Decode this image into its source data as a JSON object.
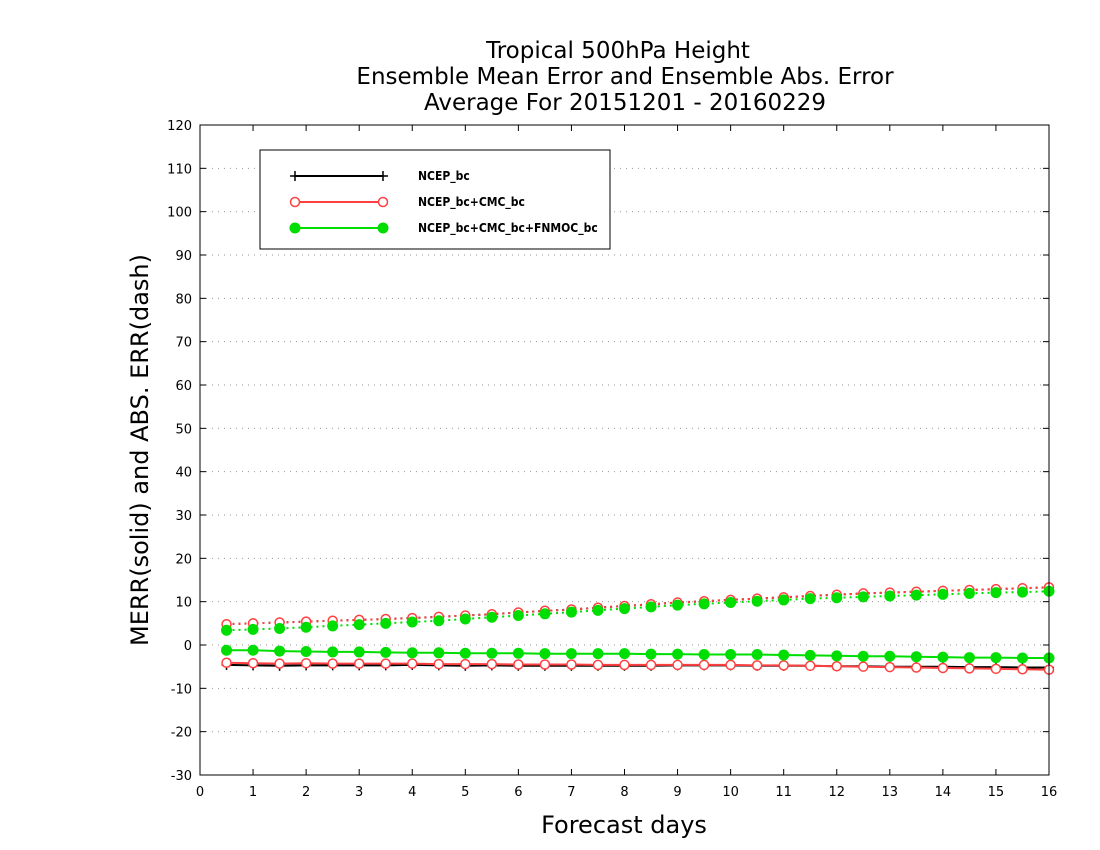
{
  "chart_data": {
    "type": "line",
    "title_lines": [
      "Tropical 500hPa Height",
      "Ensemble Mean Error and Ensemble Abs. Error",
      "Average For 20151201 - 20160229"
    ],
    "xlabel": "Forecast days",
    "ylabel": "MERR(solid) and ABS. ERR(dash)",
    "xlim": [
      0,
      16
    ],
    "ylim": [
      -30,
      120
    ],
    "xticks": [
      "0",
      "1",
      "2",
      "3",
      "4",
      "5",
      "6",
      "7",
      "8",
      "9",
      "10",
      "11",
      "12",
      "13",
      "14",
      "15",
      "16"
    ],
    "yticks": [
      "120",
      "110",
      "100",
      "90",
      "80",
      "70",
      "60",
      "50",
      "40",
      "30",
      "20",
      "10",
      "0",
      "-10",
      "-20",
      "-30"
    ],
    "grid": true,
    "legend_position": "top-left",
    "x": [
      0.5,
      1,
      1.5,
      2,
      2.5,
      3,
      3.5,
      4,
      4.5,
      5,
      5.5,
      6,
      6.5,
      7,
      7.5,
      8,
      8.5,
      9,
      9.5,
      10,
      10.5,
      11,
      11.5,
      12,
      12.5,
      13,
      13.5,
      14,
      14.5,
      15,
      15.5,
      16
    ],
    "series": [
      {
        "name": "NCEP_bc",
        "color": "#000000",
        "marker": "plus",
        "merr": [
          -4.6,
          -4.7,
          -4.8,
          -4.7,
          -4.7,
          -4.7,
          -4.7,
          -4.6,
          -4.7,
          -4.8,
          -4.7,
          -4.8,
          -4.8,
          -4.8,
          -4.8,
          -4.8,
          -4.8,
          -4.7,
          -4.7,
          -4.7,
          -4.8,
          -4.8,
          -4.8,
          -4.9,
          -4.9,
          -5.0,
          -5.0,
          -5.0,
          -5.1,
          -5.1,
          -5.2,
          -5.2
        ],
        "abs_err": [
          4.8,
          5.0,
          5.2,
          5.4,
          5.6,
          5.8,
          6.0,
          6.2,
          6.5,
          6.8,
          7.1,
          7.5,
          7.9,
          8.2,
          8.6,
          9.0,
          9.4,
          9.8,
          10.1,
          10.4,
          10.7,
          11.0,
          11.3,
          11.6,
          11.9,
          12.1,
          12.3,
          12.5,
          12.7,
          12.9,
          13.1,
          13.3
        ]
      },
      {
        "name": "NCEP_bc+CMC_bc",
        "color": "#ff4040",
        "marker": "open-circle",
        "merr": [
          -4.1,
          -4.2,
          -4.3,
          -4.2,
          -4.3,
          -4.3,
          -4.3,
          -4.3,
          -4.4,
          -4.4,
          -4.4,
          -4.5,
          -4.5,
          -4.5,
          -4.6,
          -4.6,
          -4.6,
          -4.6,
          -4.6,
          -4.6,
          -4.7,
          -4.7,
          -4.8,
          -4.9,
          -5.0,
          -5.1,
          -5.2,
          -5.3,
          -5.4,
          -5.5,
          -5.6,
          -5.7
        ],
        "abs_err": [
          4.8,
          5.0,
          5.2,
          5.4,
          5.6,
          5.8,
          6.0,
          6.2,
          6.5,
          6.8,
          7.1,
          7.5,
          7.9,
          8.2,
          8.6,
          9.0,
          9.4,
          9.8,
          10.1,
          10.4,
          10.7,
          11.0,
          11.3,
          11.6,
          11.9,
          12.1,
          12.3,
          12.5,
          12.7,
          12.9,
          13.1,
          13.3
        ]
      },
      {
        "name": "NCEP_bc+CMC_bc+FNMOC_bc",
        "color": "#00dd00",
        "marker": "filled-circle",
        "merr": [
          -1.2,
          -1.2,
          -1.4,
          -1.5,
          -1.6,
          -1.6,
          -1.7,
          -1.8,
          -1.8,
          -1.9,
          -1.9,
          -1.9,
          -2.0,
          -2.0,
          -2.0,
          -2.0,
          -2.1,
          -2.1,
          -2.2,
          -2.2,
          -2.2,
          -2.3,
          -2.4,
          -2.5,
          -2.6,
          -2.6,
          -2.7,
          -2.8,
          -2.9,
          -2.9,
          -3.0,
          -3.0
        ],
        "abs_err": [
          3.4,
          3.6,
          3.8,
          4.1,
          4.4,
          4.7,
          5.0,
          5.3,
          5.6,
          6.0,
          6.4,
          6.8,
          7.2,
          7.6,
          8.0,
          8.4,
          8.8,
          9.2,
          9.5,
          9.8,
          10.1,
          10.4,
          10.7,
          10.9,
          11.1,
          11.3,
          11.5,
          11.7,
          11.9,
          12.1,
          12.2,
          12.4
        ]
      }
    ]
  }
}
